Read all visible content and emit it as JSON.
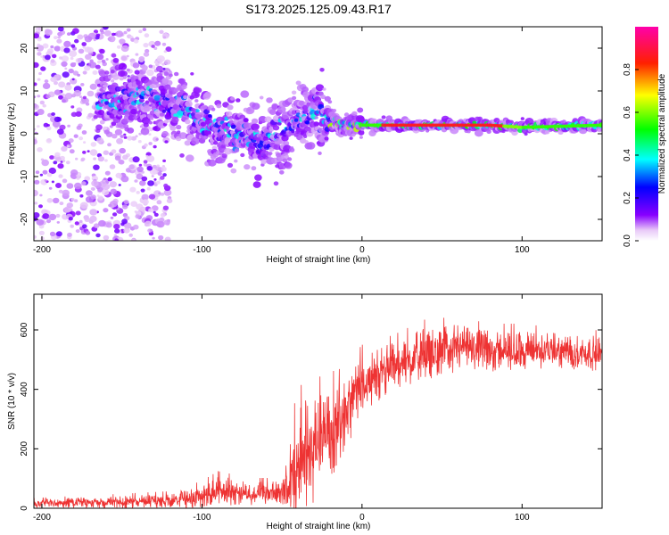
{
  "title": "S173.2025.125.09.43.R17",
  "chart_data": [
    {
      "type": "heatmap",
      "xlabel": "Height of straight line (km)",
      "ylabel": "Frequency (Hz)",
      "xlim": [
        -205,
        150
      ],
      "ylim": [
        -25,
        25
      ],
      "x_ticks": [
        -200,
        -100,
        0,
        100
      ],
      "y_ticks": [
        -20,
        -10,
        0,
        10,
        20
      ],
      "colorbar": {
        "label": "Normalized spectral amplitude",
        "range": [
          0,
          1
        ],
        "ticks": [
          "0.0",
          "0.2",
          "0.4",
          "0.6",
          "0.8"
        ],
        "tick_values": [
          0,
          0.2,
          0.4,
          0.6,
          0.8
        ],
        "colormap": "rainbow (purple-blue-cyan-green-yellow-red-magenta)"
      },
      "ridge": {
        "x": [
          -160,
          -140,
          -120,
          -100,
          -80,
          -60,
          -50,
          -40,
          -30,
          -20,
          -10,
          0,
          10,
          20,
          50,
          80,
          100,
          150
        ],
        "frequency": [
          8,
          9,
          7,
          3,
          0,
          -2,
          0,
          3,
          5,
          3,
          2,
          2,
          2,
          2,
          2,
          2,
          1.5,
          2
        ]
      }
    },
    {
      "type": "line",
      "xlabel": "Height of straight line (km)",
      "ylabel": "SNR (10 * v/v)",
      "xlim": [
        -205,
        150
      ],
      "ylim": [
        0,
        720
      ],
      "x_ticks": [
        -200,
        -100,
        0,
        100
      ],
      "y_ticks": [
        0,
        200,
        400,
        600
      ],
      "color": "#ee3333",
      "envelope": {
        "x": [
          -205,
          -160,
          -120,
          -100,
          -90,
          -70,
          -50,
          -45,
          -40,
          -30,
          -20,
          -10,
          0,
          20,
          40,
          60,
          80,
          100,
          120,
          150
        ],
        "mean": [
          15,
          20,
          25,
          40,
          60,
          50,
          50,
          80,
          150,
          200,
          250,
          320,
          420,
          480,
          520,
          540,
          530,
          530,
          530,
          520
        ],
        "amplitude": [
          15,
          20,
          25,
          40,
          50,
          40,
          40,
          150,
          200,
          180,
          160,
          120,
          100,
          80,
          90,
          80,
          70,
          70,
          60,
          60
        ]
      }
    }
  ]
}
